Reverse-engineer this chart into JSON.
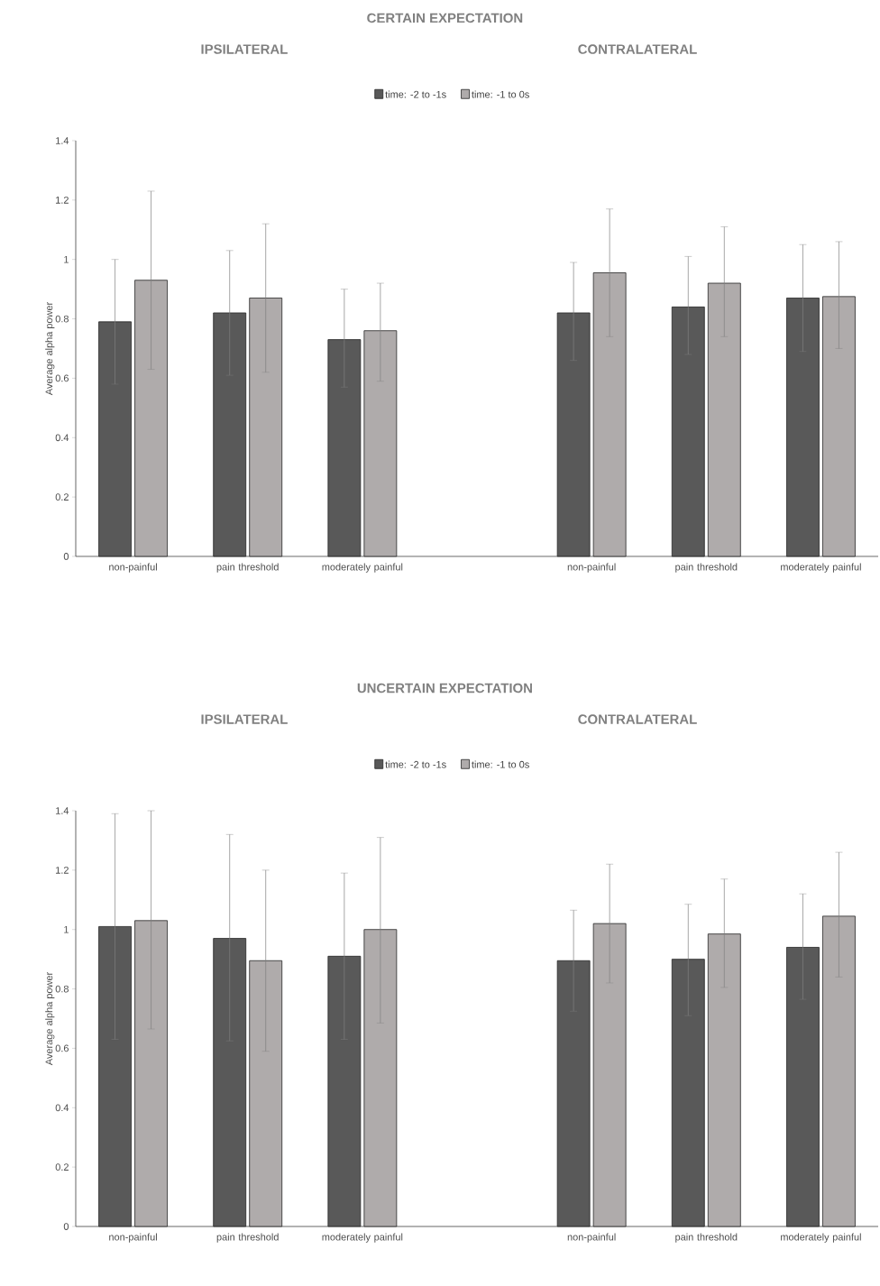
{
  "chart_data": [
    {
      "type": "bar",
      "title": "CERTAIN EXPECTATION",
      "annotations": [
        "IPSILATERAL",
        "CONTRALATERAL"
      ],
      "ylabel": "Average alpha power",
      "legend": "top",
      "categories": [
        "non-painful",
        "pain threshold",
        "moderately painful",
        null,
        "non-painful",
        "pain threshold",
        "moderately painful"
      ],
      "ylim": [
        0,
        1.4
      ],
      "yticks": [
        0,
        0.2,
        0.4,
        0.6,
        0.8,
        1,
        1.2,
        1.4
      ],
      "series": [
        {
          "name": "time: -2 to -1s",
          "color": "#595959",
          "values": [
            0.79,
            0.82,
            0.73,
            null,
            0.82,
            0.84,
            0.87
          ],
          "errors": [
            [
              0.58,
              1.0
            ],
            [
              0.61,
              1.03
            ],
            [
              0.57,
              0.9
            ],
            null,
            [
              0.66,
              0.99
            ],
            [
              0.68,
              1.01
            ],
            [
              0.69,
              1.05
            ]
          ]
        },
        {
          "name": "time: -1 to 0s",
          "color": "#afabab",
          "values": [
            0.93,
            0.87,
            0.76,
            null,
            0.955,
            0.92,
            0.875
          ],
          "errors": [
            [
              0.63,
              1.23
            ],
            [
              0.62,
              1.12
            ],
            [
              0.59,
              0.92
            ],
            null,
            [
              0.74,
              1.17
            ],
            [
              0.74,
              1.11
            ],
            [
              0.7,
              1.06
            ]
          ]
        }
      ]
    },
    {
      "type": "bar",
      "title": "UNCERTAIN EXPECTATION",
      "annotations": [
        "IPSILATERAL",
        "CONTRALATERAL"
      ],
      "ylabel": "Average alpha power",
      "legend": "top",
      "categories": [
        "non-painful",
        "pain threshold",
        "moderately painful",
        null,
        "non-painful",
        "pain threshold",
        "moderately painful"
      ],
      "ylim": [
        0,
        1.4
      ],
      "yticks": [
        0,
        0.2,
        0.4,
        0.6,
        0.8,
        1,
        1.2,
        1.4
      ],
      "series": [
        {
          "name": "time: -2 to -1s",
          "color": "#595959",
          "values": [
            1.01,
            0.97,
            0.91,
            null,
            0.895,
            0.9,
            0.94
          ],
          "errors": [
            [
              0.63,
              1.39
            ],
            [
              0.625,
              1.32
            ],
            [
              0.63,
              1.19
            ],
            null,
            [
              0.725,
              1.065
            ],
            [
              0.71,
              1.085
            ],
            [
              0.765,
              1.12
            ]
          ]
        },
        {
          "name": "time: -1 to 0s",
          "color": "#afabab",
          "values": [
            1.03,
            0.895,
            1.0,
            null,
            1.02,
            0.985,
            1.045
          ],
          "errors": [
            [
              0.665,
              1.4
            ],
            [
              0.59,
              1.2
            ],
            [
              0.685,
              1.31
            ],
            null,
            [
              0.82,
              1.22
            ],
            [
              0.805,
              1.17
            ],
            [
              0.84,
              1.26
            ]
          ]
        }
      ]
    }
  ]
}
